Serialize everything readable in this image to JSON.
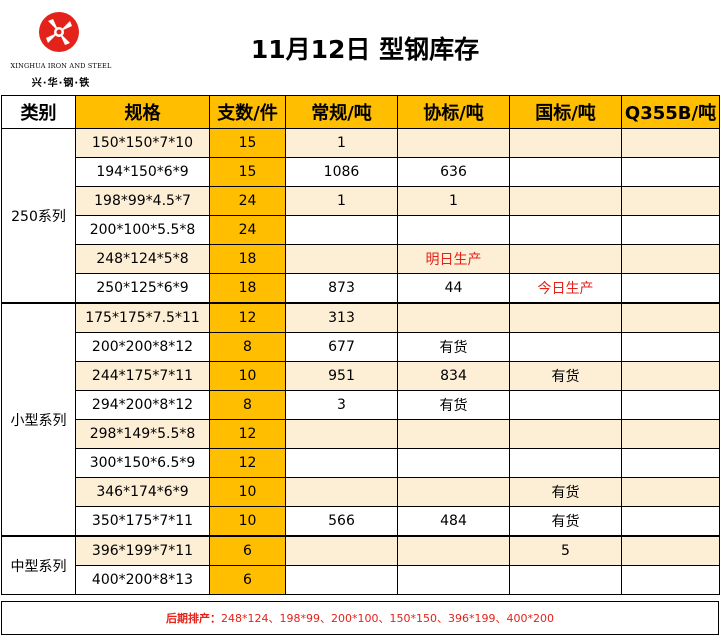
{
  "header": {
    "logo_en": "XINGHUA IRON AND STEEL",
    "logo_zh": "兴·华·钢·铁",
    "title": "11月12日 型钢库存"
  },
  "columns": [
    "类别",
    "规格",
    "支数/件",
    "常规/吨",
    "协标/吨",
    "国标/吨",
    "Q355B/吨"
  ],
  "groups": [
    {
      "name": "250系列",
      "rows": [
        {
          "spec": "150*150*7*10",
          "count": "15",
          "regular": "1",
          "assoc": "",
          "national": "",
          "q355b": ""
        },
        {
          "spec": "194*150*6*9",
          "count": "15",
          "regular": "1086",
          "assoc": "636",
          "national": "",
          "q355b": ""
        },
        {
          "spec": "198*99*4.5*7",
          "count": "24",
          "regular": "1",
          "assoc": "1",
          "national": "",
          "q355b": ""
        },
        {
          "spec": "200*100*5.5*8",
          "count": "24",
          "regular": "",
          "assoc": "",
          "national": "",
          "q355b": ""
        },
        {
          "spec": "248*124*5*8",
          "count": "18",
          "regular": "",
          "assoc": "明日生产",
          "national": "",
          "q355b": ""
        },
        {
          "spec": "250*125*6*9",
          "count": "18",
          "regular": "873",
          "assoc": "44",
          "national": "今日生产",
          "q355b": ""
        }
      ]
    },
    {
      "name": "小型系列",
      "rows": [
        {
          "spec": "175*175*7.5*11",
          "count": "12",
          "regular": "313",
          "assoc": "",
          "national": "",
          "q355b": ""
        },
        {
          "spec": "200*200*8*12",
          "count": "8",
          "regular": "677",
          "assoc": "有货",
          "national": "",
          "q355b": ""
        },
        {
          "spec": "244*175*7*11",
          "count": "10",
          "regular": "951",
          "assoc": "834",
          "national": "有货",
          "q355b": ""
        },
        {
          "spec": "294*200*8*12",
          "count": "8",
          "regular": "3",
          "assoc": "有货",
          "national": "",
          "q355b": ""
        },
        {
          "spec": "298*149*5.5*8",
          "count": "12",
          "regular": "",
          "assoc": "",
          "national": "",
          "q355b": ""
        },
        {
          "spec": "300*150*6.5*9",
          "count": "12",
          "regular": "",
          "assoc": "",
          "national": "",
          "q355b": ""
        },
        {
          "spec": "346*174*6*9",
          "count": "10",
          "regular": "",
          "assoc": "",
          "national": "有货",
          "q355b": ""
        },
        {
          "spec": "350*175*7*11",
          "count": "10",
          "regular": "566",
          "assoc": "484",
          "national": "有货",
          "q355b": ""
        }
      ]
    },
    {
      "name": "中型系列",
      "rows": [
        {
          "spec": "396*199*7*11",
          "count": "6",
          "regular": "",
          "assoc": "",
          "national": "5",
          "q355b": ""
        },
        {
          "spec": "400*200*8*13",
          "count": "6",
          "regular": "",
          "assoc": "",
          "national": "",
          "q355b": ""
        }
      ]
    }
  ],
  "footer": {
    "label": "后期排产：",
    "value": "248*124、198*99、200*100、150*150、396*199、400*200"
  },
  "colors": {
    "header_orange": "#ffbe00",
    "row_shade": "#fdefd6",
    "red_text": "#e3231b"
  }
}
